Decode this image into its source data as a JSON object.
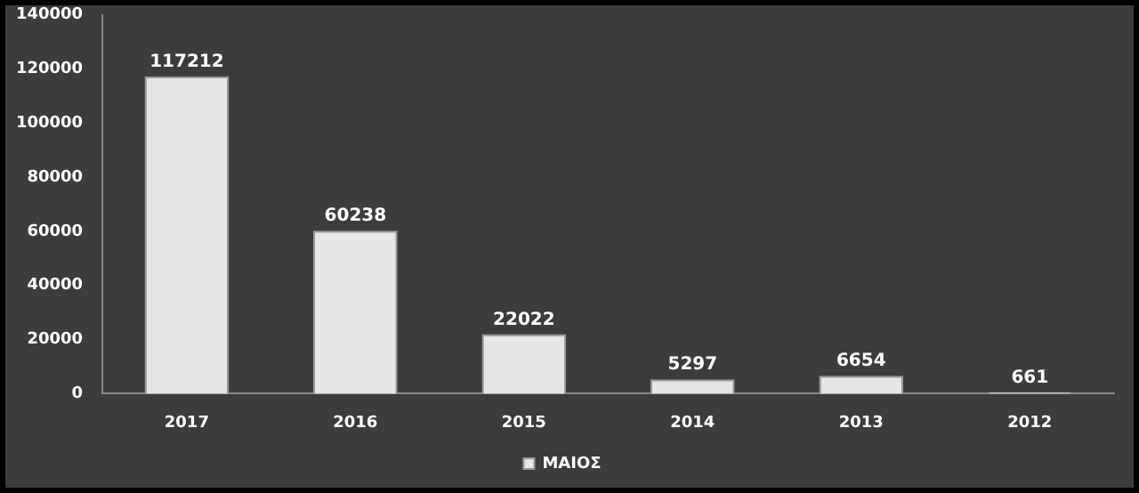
{
  "chart_data": {
    "type": "bar",
    "categories": [
      "2017",
      "2016",
      "2015",
      "2014",
      "2013",
      "2012"
    ],
    "series": [
      {
        "name": "ΜΑΙΟΣ",
        "color": "#e6e6e6",
        "values": [
          117212,
          60238,
          22022,
          5297,
          6654,
          661
        ]
      }
    ],
    "ylim": [
      0,
      140000
    ],
    "yticks": [
      0,
      20000,
      40000,
      60000,
      80000,
      100000,
      120000,
      140000
    ],
    "grid": false,
    "legend": "bottom",
    "data_labels": true
  }
}
